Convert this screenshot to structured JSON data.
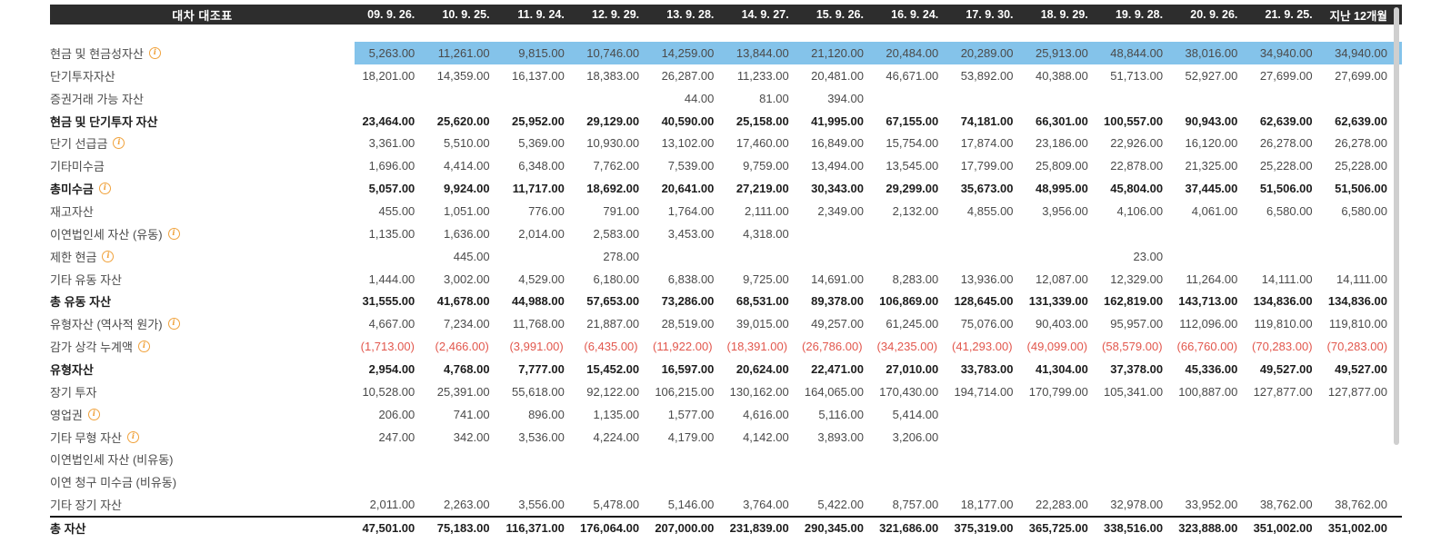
{
  "header": {
    "title": "대차 대조표",
    "columns": [
      "09. 9. 26.",
      "10. 9. 25.",
      "11. 9. 24.",
      "12. 9. 29.",
      "13. 9. 28.",
      "14. 9. 27.",
      "15. 9. 26.",
      "16. 9. 24.",
      "17. 9. 30.",
      "18. 9. 29.",
      "19. 9. 28.",
      "20. 9. 26.",
      "21. 9. 25.",
      "지난 12개월"
    ]
  },
  "rows": [
    {
      "label": "현금 및 현금성자산",
      "info": true,
      "bold": false,
      "highlight": true,
      "negative": false,
      "total": false,
      "values": [
        "5,263.00",
        "11,261.00",
        "9,815.00",
        "10,746.00",
        "14,259.00",
        "13,844.00",
        "21,120.00",
        "20,484.00",
        "20,289.00",
        "25,913.00",
        "48,844.00",
        "38,016.00",
        "34,940.00",
        "34,940.00"
      ]
    },
    {
      "label": "단기투자자산",
      "info": false,
      "bold": false,
      "highlight": false,
      "negative": false,
      "total": false,
      "values": [
        "18,201.00",
        "14,359.00",
        "16,137.00",
        "18,383.00",
        "26,287.00",
        "11,233.00",
        "20,481.00",
        "46,671.00",
        "53,892.00",
        "40,388.00",
        "51,713.00",
        "52,927.00",
        "27,699.00",
        "27,699.00"
      ]
    },
    {
      "label": "증권거래 가능 자산",
      "info": false,
      "bold": false,
      "highlight": false,
      "negative": false,
      "total": false,
      "values": [
        "",
        "",
        "",
        "",
        "44.00",
        "81.00",
        "394.00",
        "",
        "",
        "",
        "",
        "",
        "",
        ""
      ]
    },
    {
      "label": "현금 및 단기투자 자산",
      "info": false,
      "bold": true,
      "highlight": false,
      "negative": false,
      "total": false,
      "values": [
        "23,464.00",
        "25,620.00",
        "25,952.00",
        "29,129.00",
        "40,590.00",
        "25,158.00",
        "41,995.00",
        "67,155.00",
        "74,181.00",
        "66,301.00",
        "100,557.00",
        "90,943.00",
        "62,639.00",
        "62,639.00"
      ]
    },
    {
      "label": "단기 선급금",
      "info": true,
      "bold": false,
      "highlight": false,
      "negative": false,
      "total": false,
      "values": [
        "3,361.00",
        "5,510.00",
        "5,369.00",
        "10,930.00",
        "13,102.00",
        "17,460.00",
        "16,849.00",
        "15,754.00",
        "17,874.00",
        "23,186.00",
        "22,926.00",
        "16,120.00",
        "26,278.00",
        "26,278.00"
      ]
    },
    {
      "label": "기타미수금",
      "info": false,
      "bold": false,
      "highlight": false,
      "negative": false,
      "total": false,
      "values": [
        "1,696.00",
        "4,414.00",
        "6,348.00",
        "7,762.00",
        "7,539.00",
        "9,759.00",
        "13,494.00",
        "13,545.00",
        "17,799.00",
        "25,809.00",
        "22,878.00",
        "21,325.00",
        "25,228.00",
        "25,228.00"
      ]
    },
    {
      "label": "총미수금",
      "info": true,
      "bold": true,
      "highlight": false,
      "negative": false,
      "total": false,
      "values": [
        "5,057.00",
        "9,924.00",
        "11,717.00",
        "18,692.00",
        "20,641.00",
        "27,219.00",
        "30,343.00",
        "29,299.00",
        "35,673.00",
        "48,995.00",
        "45,804.00",
        "37,445.00",
        "51,506.00",
        "51,506.00"
      ]
    },
    {
      "label": "재고자산",
      "info": false,
      "bold": false,
      "highlight": false,
      "negative": false,
      "total": false,
      "values": [
        "455.00",
        "1,051.00",
        "776.00",
        "791.00",
        "1,764.00",
        "2,111.00",
        "2,349.00",
        "2,132.00",
        "4,855.00",
        "3,956.00",
        "4,106.00",
        "4,061.00",
        "6,580.00",
        "6,580.00"
      ]
    },
    {
      "label": "이연법인세 자산 (유동)",
      "info": true,
      "bold": false,
      "highlight": false,
      "negative": false,
      "total": false,
      "values": [
        "1,135.00",
        "1,636.00",
        "2,014.00",
        "2,583.00",
        "3,453.00",
        "4,318.00",
        "",
        "",
        "",
        "",
        "",
        "",
        "",
        ""
      ]
    },
    {
      "label": "제한 현금",
      "info": true,
      "bold": false,
      "highlight": false,
      "negative": false,
      "total": false,
      "values": [
        "",
        "445.00",
        "",
        "278.00",
        "",
        "",
        "",
        "",
        "",
        "",
        "23.00",
        "",
        "",
        ""
      ]
    },
    {
      "label": "기타 유동 자산",
      "info": false,
      "bold": false,
      "highlight": false,
      "negative": false,
      "total": false,
      "values": [
        "1,444.00",
        "3,002.00",
        "4,529.00",
        "6,180.00",
        "6,838.00",
        "9,725.00",
        "14,691.00",
        "8,283.00",
        "13,936.00",
        "12,087.00",
        "12,329.00",
        "11,264.00",
        "14,111.00",
        "14,111.00"
      ]
    },
    {
      "label": "총 유동 자산",
      "info": false,
      "bold": true,
      "highlight": false,
      "negative": false,
      "total": false,
      "values": [
        "31,555.00",
        "41,678.00",
        "44,988.00",
        "57,653.00",
        "73,286.00",
        "68,531.00",
        "89,378.00",
        "106,869.00",
        "128,645.00",
        "131,339.00",
        "162,819.00",
        "143,713.00",
        "134,836.00",
        "134,836.00"
      ]
    },
    {
      "label": "유형자산 (역사적 원가)",
      "info": true,
      "bold": false,
      "highlight": false,
      "negative": false,
      "total": false,
      "values": [
        "4,667.00",
        "7,234.00",
        "11,768.00",
        "21,887.00",
        "28,519.00",
        "39,015.00",
        "49,257.00",
        "61,245.00",
        "75,076.00",
        "90,403.00",
        "95,957.00",
        "112,096.00",
        "119,810.00",
        "119,810.00"
      ]
    },
    {
      "label": "감가 상각 누계액",
      "info": true,
      "bold": false,
      "highlight": false,
      "negative": true,
      "total": false,
      "values": [
        "(1,713.00)",
        "(2,466.00)",
        "(3,991.00)",
        "(6,435.00)",
        "(11,922.00)",
        "(18,391.00)",
        "(26,786.00)",
        "(34,235.00)",
        "(41,293.00)",
        "(49,099.00)",
        "(58,579.00)",
        "(66,760.00)",
        "(70,283.00)",
        "(70,283.00)"
      ]
    },
    {
      "label": "유형자산",
      "info": false,
      "bold": true,
      "highlight": false,
      "negative": false,
      "total": false,
      "values": [
        "2,954.00",
        "4,768.00",
        "7,777.00",
        "15,452.00",
        "16,597.00",
        "20,624.00",
        "22,471.00",
        "27,010.00",
        "33,783.00",
        "41,304.00",
        "37,378.00",
        "45,336.00",
        "49,527.00",
        "49,527.00"
      ]
    },
    {
      "label": "장기 투자",
      "info": false,
      "bold": false,
      "highlight": false,
      "negative": false,
      "total": false,
      "values": [
        "10,528.00",
        "25,391.00",
        "55,618.00",
        "92,122.00",
        "106,215.00",
        "130,162.00",
        "164,065.00",
        "170,430.00",
        "194,714.00",
        "170,799.00",
        "105,341.00",
        "100,887.00",
        "127,877.00",
        "127,877.00"
      ]
    },
    {
      "label": "영업권",
      "info": true,
      "bold": false,
      "highlight": false,
      "negative": false,
      "total": false,
      "values": [
        "206.00",
        "741.00",
        "896.00",
        "1,135.00",
        "1,577.00",
        "4,616.00",
        "5,116.00",
        "5,414.00",
        "",
        "",
        "",
        "",
        "",
        ""
      ]
    },
    {
      "label": "기타 무형 자산",
      "info": true,
      "bold": false,
      "highlight": false,
      "negative": false,
      "total": false,
      "values": [
        "247.00",
        "342.00",
        "3,536.00",
        "4,224.00",
        "4,179.00",
        "4,142.00",
        "3,893.00",
        "3,206.00",
        "",
        "",
        "",
        "",
        "",
        ""
      ]
    },
    {
      "label": "이연법인세 자산 (비유동)",
      "info": false,
      "bold": false,
      "highlight": false,
      "negative": false,
      "total": false,
      "values": [
        "",
        "",
        "",
        "",
        "",
        "",
        "",
        "",
        "",
        "",
        "",
        "",
        "",
        ""
      ]
    },
    {
      "label": "이연 청구 미수금 (비유동)",
      "info": false,
      "bold": false,
      "highlight": false,
      "negative": false,
      "total": false,
      "values": [
        "",
        "",
        "",
        "",
        "",
        "",
        "",
        "",
        "",
        "",
        "",
        "",
        "",
        ""
      ]
    },
    {
      "label": "기타 장기 자산",
      "info": false,
      "bold": false,
      "highlight": false,
      "negative": false,
      "total": false,
      "values": [
        "2,011.00",
        "2,263.00",
        "3,556.00",
        "5,478.00",
        "5,146.00",
        "3,764.00",
        "5,422.00",
        "8,757.00",
        "18,177.00",
        "22,283.00",
        "32,978.00",
        "33,952.00",
        "38,762.00",
        "38,762.00"
      ]
    },
    {
      "label": "총 자산",
      "info": false,
      "bold": true,
      "highlight": false,
      "negative": false,
      "total": true,
      "values": [
        "47,501.00",
        "75,183.00",
        "116,371.00",
        "176,064.00",
        "207,000.00",
        "231,839.00",
        "290,345.00",
        "321,686.00",
        "375,319.00",
        "365,725.00",
        "338,516.00",
        "323,888.00",
        "351,002.00",
        "351,002.00"
      ]
    }
  ],
  "ui": {
    "info_icon_glyph": "i",
    "colors": {
      "header_bg": "#2d2d2d",
      "header_text": "#ffffff",
      "highlight_row": "#84c3ea",
      "negative_value": "#e2574d",
      "body_text": "#4a4a4a",
      "bold_text": "#1d1d1d",
      "info_icon": "#f0a23c",
      "scrollbar_thumb": "#cfcfcf"
    }
  }
}
